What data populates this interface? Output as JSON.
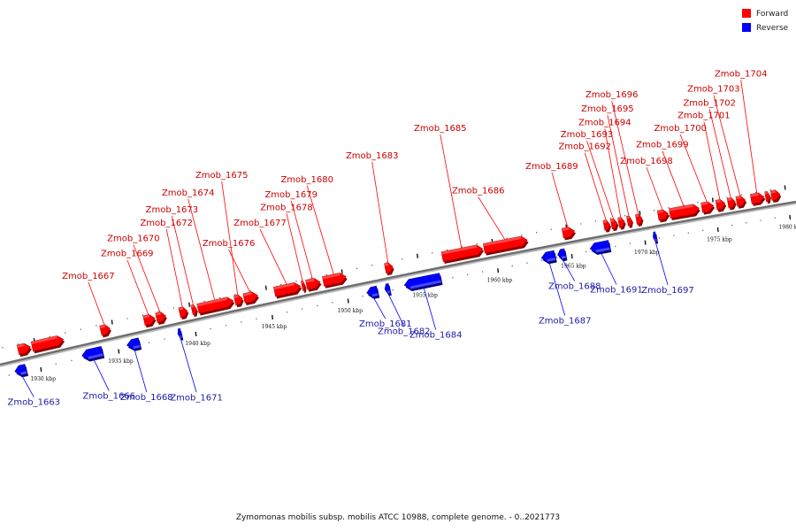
{
  "legend": {
    "forward": {
      "label": "Forward",
      "color": "#ff0000"
    },
    "reverse": {
      "label": "Reverse",
      "color": "#0000ff"
    }
  },
  "caption": "Zymomonas mobilis subsp. mobilis ATCC 10988, complete genome. - 0..2021773",
  "axis": {
    "ticks": [
      {
        "kbp": 1930,
        "label": "1930 kbp"
      },
      {
        "kbp": 1935,
        "label": "1935 kbp"
      },
      {
        "kbp": 1940,
        "label": "1940 kbp"
      },
      {
        "kbp": 1945,
        "label": "1945 kbp"
      },
      {
        "kbp": 1950,
        "label": "1950 kbp"
      },
      {
        "kbp": 1955,
        "label": "1955 kbp"
      },
      {
        "kbp": 1960,
        "label": "1960 kbp"
      },
      {
        "kbp": 1965,
        "label": "1965 kbp"
      },
      {
        "kbp": 1970,
        "label": "1970 kbp"
      },
      {
        "kbp": 1975,
        "label": "1975 kbp"
      },
      {
        "kbp": 1980,
        "label": "1980 kbp"
      }
    ]
  },
  "genes": [
    {
      "name": "Zmob_1663",
      "strand": "reverse",
      "start": 1928.4,
      "end": 1929.1
    },
    {
      "name": "",
      "strand": "forward",
      "start": 1928.9,
      "end": 1929.7
    },
    {
      "name": "",
      "strand": "forward",
      "start": 1929.8,
      "end": 1931.8
    },
    {
      "name": "Zmob_1666",
      "strand": "reverse",
      "start": 1932.7,
      "end": 1934.0
    },
    {
      "name": "Zmob_1667",
      "strand": "forward",
      "start": 1934.2,
      "end": 1934.8
    },
    {
      "name": "Zmob_1668",
      "strand": "reverse",
      "start": 1935.6,
      "end": 1936.4
    },
    {
      "name": "Zmob_1669",
      "strand": "forward",
      "start": 1937.0,
      "end": 1937.7
    },
    {
      "name": "Zmob_1670",
      "strand": "forward",
      "start": 1937.8,
      "end": 1938.4
    },
    {
      "name": "Zmob_1671",
      "strand": "reverse",
      "start": 1938.9,
      "end": 1939.1
    },
    {
      "name": "Zmob_1672",
      "strand": "forward",
      "start": 1939.3,
      "end": 1939.8
    },
    {
      "name": "Zmob_1673",
      "strand": "forward",
      "start": 1940.1,
      "end": 1940.4
    },
    {
      "name": "Zmob_1674",
      "strand": "forward",
      "start": 1940.5,
      "end": 1942.8
    },
    {
      "name": "Zmob_1675",
      "strand": "forward",
      "start": 1942.9,
      "end": 1943.4
    },
    {
      "name": "Zmob_1676",
      "strand": "forward",
      "start": 1943.5,
      "end": 1944.4
    },
    {
      "name": "Zmob_1677",
      "strand": "forward",
      "start": 1945.5,
      "end": 1947.2
    },
    {
      "name": "Zmob_1678",
      "strand": "forward",
      "start": 1947.3,
      "end": 1947.5
    },
    {
      "name": "Zmob_1679",
      "strand": "forward",
      "start": 1947.6,
      "end": 1948.5
    },
    {
      "name": "Zmob_1680",
      "strand": "forward",
      "start": 1948.7,
      "end": 1950.2
    },
    {
      "name": "Zmob_1681",
      "strand": "reverse",
      "start": 1951.3,
      "end": 1952.0
    },
    {
      "name": "Zmob_1682",
      "strand": "reverse",
      "start": 1952.5,
      "end": 1952.8
    },
    {
      "name": "Zmob_1683",
      "strand": "forward",
      "start": 1952.8,
      "end": 1953.3
    },
    {
      "name": "Zmob_1684",
      "strand": "reverse",
      "start": 1953.8,
      "end": 1956.2
    },
    {
      "name": "Zmob_1685",
      "strand": "forward",
      "start": 1956.6,
      "end": 1959.3
    },
    {
      "name": "Zmob_1686",
      "strand": "forward",
      "start": 1959.4,
      "end": 1962.3
    },
    {
      "name": "Zmob_1687",
      "strand": "reverse",
      "start": 1963.0,
      "end": 1963.9
    },
    {
      "name": "Zmob_1688",
      "strand": "reverse",
      "start": 1964.1,
      "end": 1964.6
    },
    {
      "name": "Zmob_1689",
      "strand": "forward",
      "start": 1964.7,
      "end": 1965.5
    },
    {
      "name": "Zmob_1691",
      "strand": "reverse",
      "start": 1966.3,
      "end": 1967.6
    },
    {
      "name": "Zmob_1692",
      "strand": "forward",
      "start": 1967.5,
      "end": 1967.9
    },
    {
      "name": "Zmob_1693",
      "strand": "forward",
      "start": 1968.0,
      "end": 1968.4
    },
    {
      "name": "Zmob_1694",
      "strand": "forward",
      "start": 1968.5,
      "end": 1968.9
    },
    {
      "name": "Zmob_1695",
      "strand": "forward",
      "start": 1969.1,
      "end": 1969.4
    },
    {
      "name": "Zmob_1696",
      "strand": "forward",
      "start": 1969.7,
      "end": 1970.1
    },
    {
      "name": "Zmob_1697",
      "strand": "reverse",
      "start": 1970.6,
      "end": 1970.8
    },
    {
      "name": "Zmob_1698",
      "strand": "forward",
      "start": 1971.2,
      "end": 1971.9
    },
    {
      "name": "Zmob_1699",
      "strand": "forward",
      "start": 1972.0,
      "end": 1974.0
    },
    {
      "name": "Zmob_1700",
      "strand": "forward",
      "start": 1974.2,
      "end": 1975.0
    },
    {
      "name": "Zmob_1701",
      "strand": "forward",
      "start": 1975.2,
      "end": 1975.8
    },
    {
      "name": "Zmob_1702",
      "strand": "forward",
      "start": 1976.0,
      "end": 1976.5
    },
    {
      "name": "Zmob_1703",
      "strand": "forward",
      "start": 1976.6,
      "end": 1977.2
    },
    {
      "name": "Zmob_1704",
      "strand": "forward",
      "start": 1977.6,
      "end": 1978.5
    },
    {
      "name": "",
      "strand": "forward",
      "start": 1978.6,
      "end": 1978.9
    },
    {
      "name": "",
      "strand": "forward",
      "start": 1979.0,
      "end": 1979.6
    }
  ]
}
